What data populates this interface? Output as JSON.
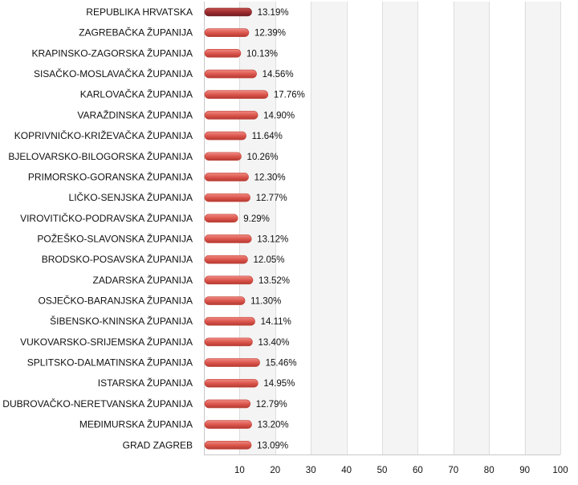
{
  "chart_data": {
    "type": "bar",
    "orientation": "horizontal",
    "categories": [
      "REPUBLIKA HRVATSKA",
      "ZAGREBAČKA ŽUPANIJA",
      "KRAPINSKO-ZAGORSKA ŽUPANIJA",
      "SISAČKO-MOSLAVAČKA ŽUPANIJA",
      "KARLOVAČKA ŽUPANIJA",
      "VARAŽDINSKA ŽUPANIJA",
      "KOPRIVNIČKO-KRIŽEVAČKA ŽUPANIJA",
      "BJELOVARSKO-BILOGORSKA ŽUPANIJA",
      "PRIMORSKO-GORANSKA ŽUPANIJA",
      "LIČKO-SENJSKA ŽUPANIJA",
      "VIROVITIČKO-PODRAVSKA ŽUPANIJA",
      "POŽEŠKO-SLAVONSKA ŽUPANIJA",
      "BRODSKO-POSAVSKA ŽUPANIJA",
      "ZADARSKA ŽUPANIJA",
      "OSJEČKO-BARANJSKA ŽUPANIJA",
      "ŠIBENSKO-KNINSKA ŽUPANIJA",
      "VUKOVARSKO-SRIJEMSKA ŽUPANIJA",
      "SPLITSKO-DALMATINSKA ŽUPANIJA",
      "ISTARSKA ŽUPANIJA",
      "DUBROVAČKO-NERETVANSKA ŽUPANIJA",
      "MEĐIMURSKA ŽUPANIJA",
      "GRAD ZAGREB"
    ],
    "values": [
      13.19,
      12.39,
      10.13,
      14.56,
      17.76,
      14.9,
      11.64,
      10.26,
      12.3,
      12.77,
      9.29,
      13.12,
      12.05,
      13.52,
      11.3,
      14.11,
      13.4,
      15.46,
      14.95,
      12.79,
      13.2,
      13.09
    ],
    "value_labels": [
      "13.19%",
      "12.39%",
      "10.13%",
      "14.56%",
      "17.76%",
      "14.90%",
      "11.64%",
      "10.26%",
      "12.30%",
      "12.77%",
      "9.29%",
      "13.12%",
      "12.05%",
      "13.52%",
      "11.30%",
      "14.11%",
      "13.40%",
      "15.46%",
      "14.95%",
      "12.79%",
      "13.20%",
      "13.09%"
    ],
    "x_ticks": [
      10,
      20,
      30,
      40,
      50,
      60,
      70,
      80,
      90,
      100
    ],
    "xlim": [
      0,
      100
    ],
    "highlight_index": 0,
    "grid": true,
    "legend": "none",
    "colors": {
      "bar": "#d9534a",
      "bar_highlight": "#9b2b2e",
      "grid": "#dddddd",
      "band": "#f4f4f4"
    }
  }
}
